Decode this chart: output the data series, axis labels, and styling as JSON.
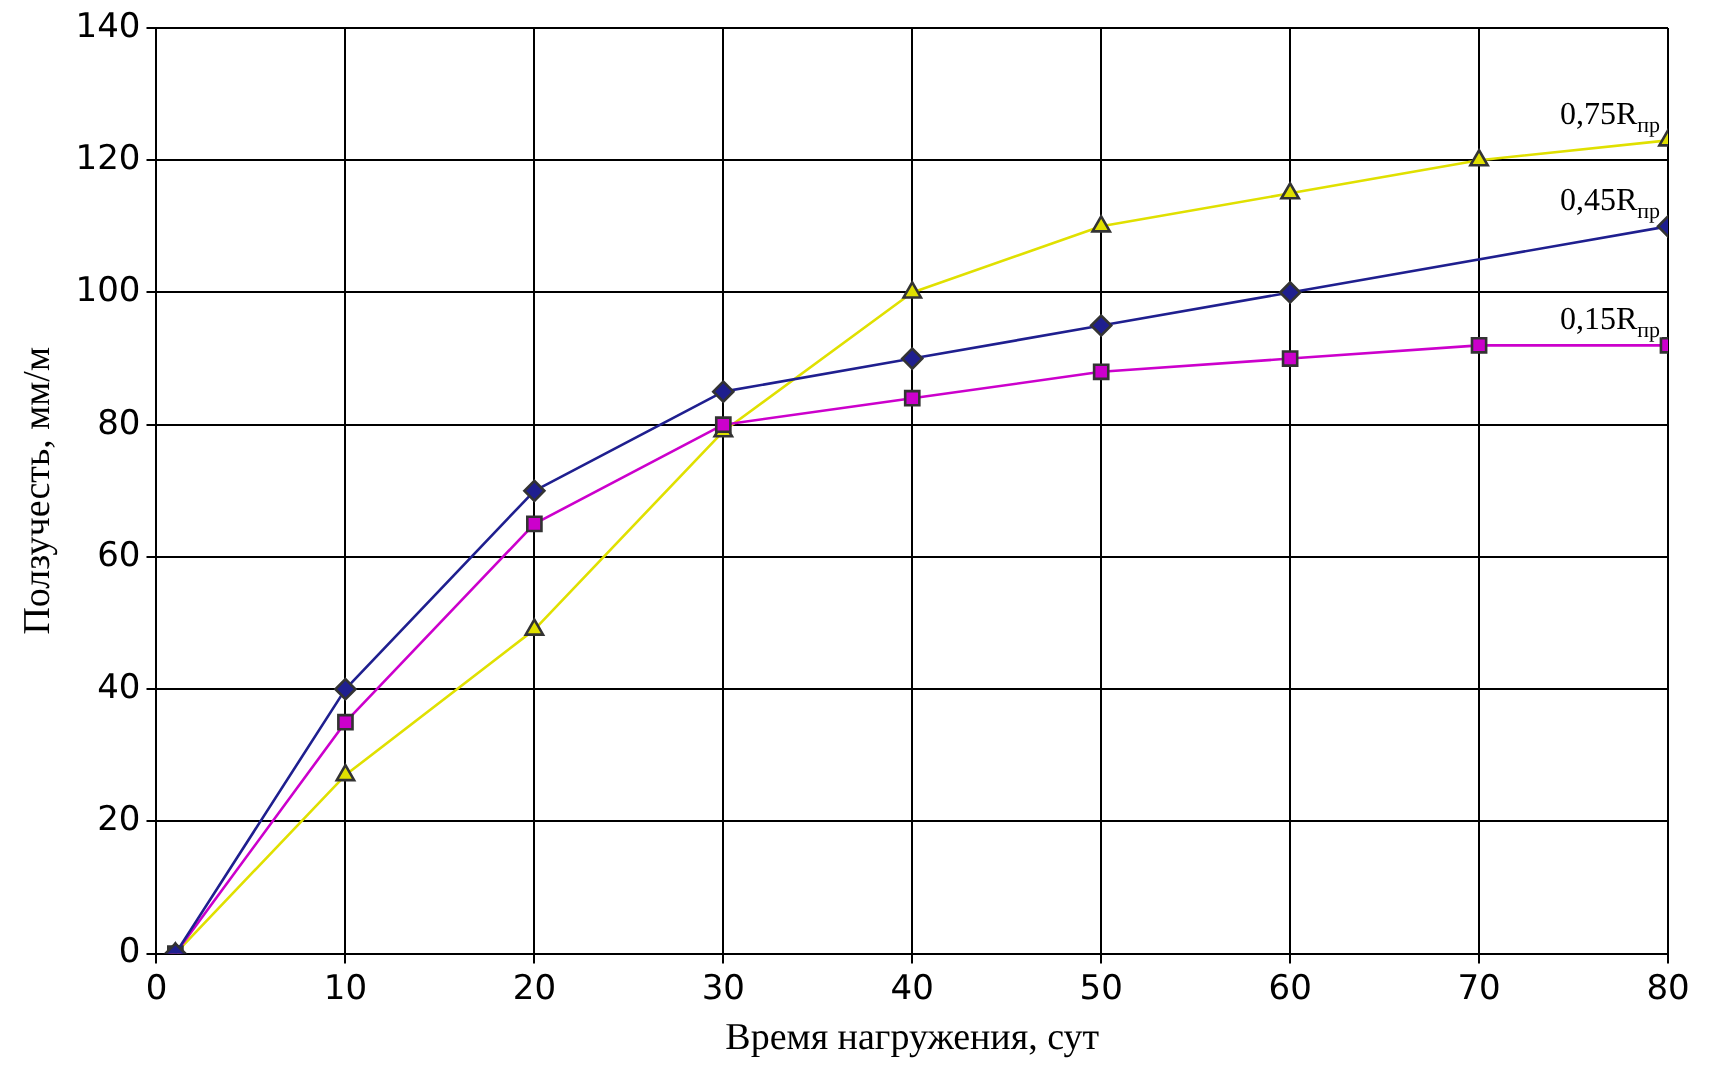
{
  "chart_data": {
    "type": "line",
    "xlabel": "Время нагружения, сут",
    "ylabel": "Ползучесть, мм/м",
    "xlim": [
      0,
      80
    ],
    "xticks": [
      0,
      10,
      20,
      30,
      40,
      50,
      60,
      70,
      80
    ],
    "ylim": [
      0,
      140
    ],
    "yticks": [
      0,
      20,
      40,
      60,
      80,
      100,
      120,
      140
    ],
    "grid": true,
    "legend": false,
    "line_style": "solid",
    "series": [
      {
        "name": "0,45R$_{пр}$",
        "color": "#1f1f8f",
        "marker": "diamond",
        "x": [
          1,
          10,
          20,
          30,
          40,
          50,
          60,
          80
        ],
        "values": [
          0,
          40,
          70,
          85,
          90,
          95,
          100,
          110
        ]
      },
      {
        "name": "0,15R$_{пр}$",
        "color": "#cc00cc",
        "marker": "square",
        "x": [
          1,
          10,
          20,
          30,
          40,
          50,
          60,
          70,
          80
        ],
        "values": [
          0,
          35,
          65,
          80,
          84,
          88,
          90,
          92,
          92
        ]
      },
      {
        "name": "0,75R$_{пр}$",
        "color": "#e0e000",
        "marker": "triangle",
        "x": [
          1,
          10,
          20,
          30,
          40,
          50,
          60,
          70,
          80
        ],
        "values": [
          0,
          27,
          49,
          79,
          100,
          110,
          115,
          120,
          123
        ]
      }
    ]
  }
}
